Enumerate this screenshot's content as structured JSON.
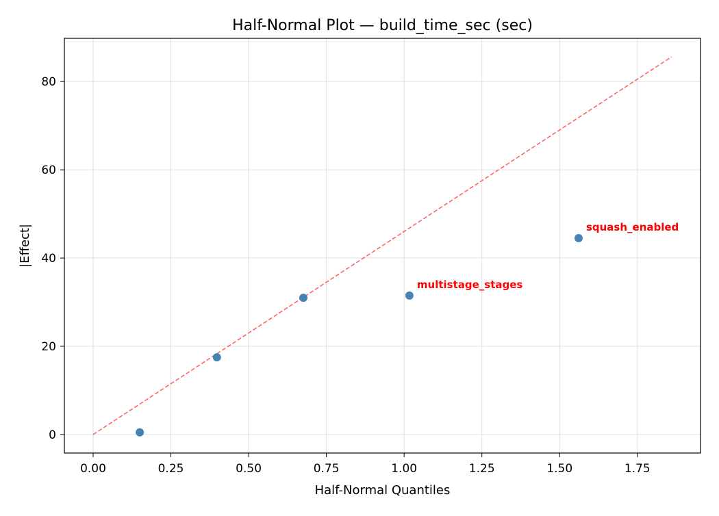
{
  "chart_data": {
    "type": "scatter",
    "title": "Half-Normal Plot — build_time_sec (sec)",
    "xlabel": "Half-Normal Quantiles",
    "ylabel": "|Effect|",
    "xlim": [
      -0.0925,
      1.953
    ],
    "ylim": [
      -4.2,
      89.8
    ],
    "xticks": [
      0.0,
      0.25,
      0.5,
      0.75,
      1.0,
      1.25,
      1.5,
      1.75
    ],
    "xtick_labels": [
      "0.00",
      "0.25",
      "0.50",
      "0.75",
      "1.00",
      "1.25",
      "1.50",
      "1.75"
    ],
    "yticks": [
      0,
      20,
      40,
      60,
      80
    ],
    "ytick_labels": [
      "0",
      "20",
      "40",
      "60",
      "80"
    ],
    "grid": true,
    "points": [
      {
        "x": 0.15,
        "y": 0.5,
        "label": ""
      },
      {
        "x": 0.398,
        "y": 17.5,
        "label": ""
      },
      {
        "x": 0.676,
        "y": 31.0,
        "label": ""
      },
      {
        "x": 1.017,
        "y": 31.5,
        "label": "multistage_stages"
      },
      {
        "x": 1.561,
        "y": 44.5,
        "label": "squash_enabled"
      }
    ],
    "reference_line": {
      "x": [
        0.0,
        1.86
      ],
      "y": [
        0.0,
        85.6
      ],
      "style": "dashed"
    },
    "colors": {
      "points": "#4682b4",
      "reference_line": "#ff6666",
      "labels": "#ff0000",
      "grid": "#e0e0e0"
    }
  }
}
